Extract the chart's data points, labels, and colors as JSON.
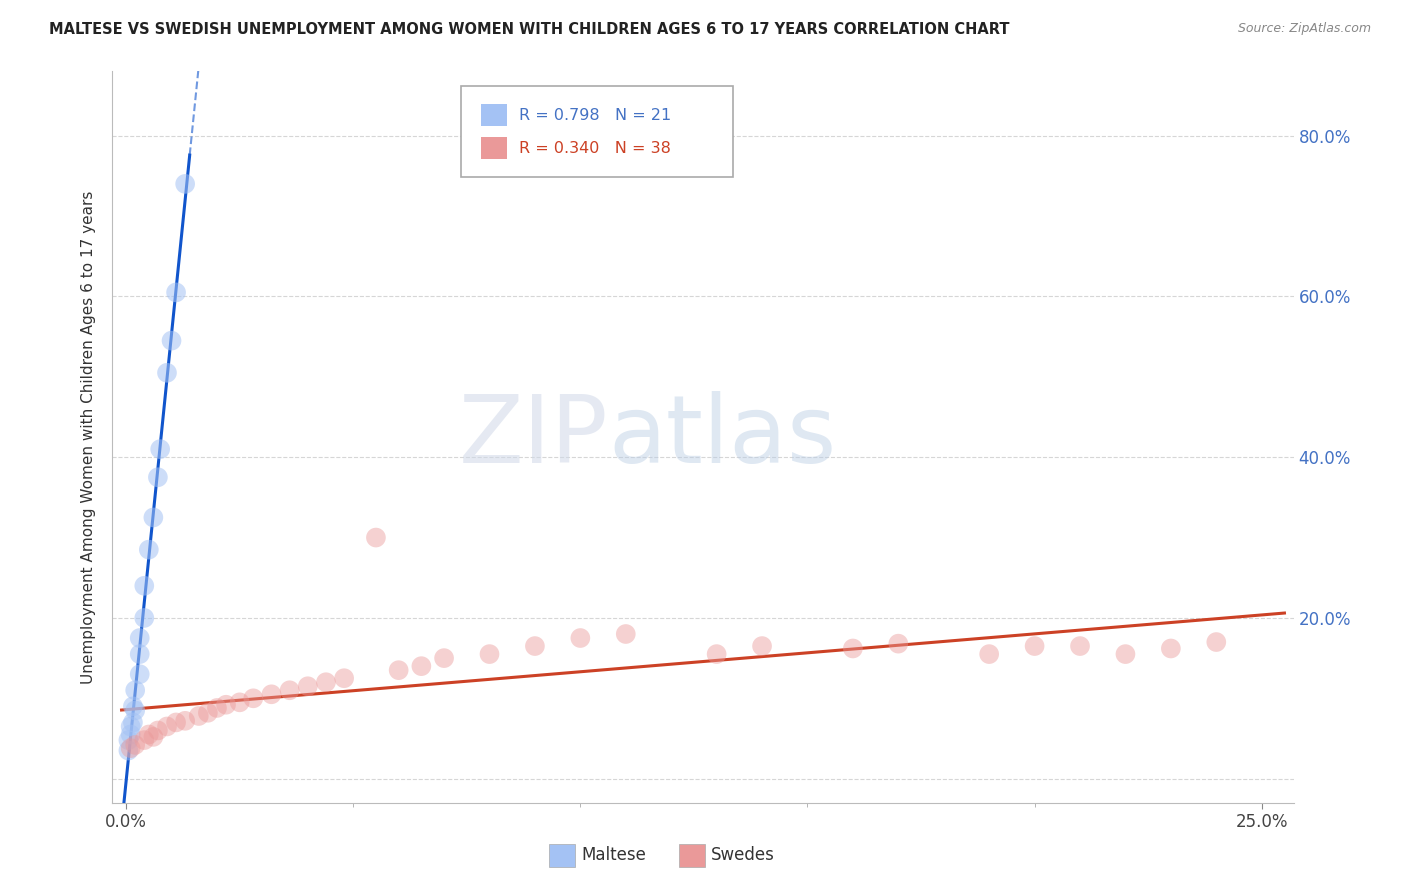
{
  "title": "MALTESE VS SWEDISH UNEMPLOYMENT AMONG WOMEN WITH CHILDREN AGES 6 TO 17 YEARS CORRELATION CHART",
  "source": "Source: ZipAtlas.com",
  "ylabel": "Unemployment Among Women with Children Ages 6 to 17 years",
  "legend_maltese": "Maltese",
  "legend_swedes": "Swedes",
  "legend_r_maltese": "R = 0.798",
  "legend_n_maltese": "N = 21",
  "legend_r_swedes": "R = 0.340",
  "legend_n_swedes": "N = 38",
  "xlim": [
    -0.003,
    0.257
  ],
  "ylim": [
    -0.03,
    0.88
  ],
  "yticks": [
    0.0,
    0.2,
    0.4,
    0.6,
    0.8
  ],
  "ytick_labels": [
    "",
    "20.0%",
    "40.0%",
    "60.0%",
    "80.0%"
  ],
  "blue_color": "#a4c2f4",
  "blue_line_color": "#1155cc",
  "pink_color": "#ea9999",
  "pink_line_color": "#cc4125",
  "grid_color": "#cccccc",
  "background_color": "#ffffff",
  "maltese_x": [
    0.0005,
    0.0005,
    0.001,
    0.001,
    0.0015,
    0.0015,
    0.002,
    0.002,
    0.003,
    0.003,
    0.003,
    0.004,
    0.004,
    0.005,
    0.006,
    0.007,
    0.0075,
    0.009,
    0.01,
    0.011,
    0.013
  ],
  "maltese_y": [
    0.035,
    0.048,
    0.055,
    0.065,
    0.07,
    0.09,
    0.085,
    0.11,
    0.13,
    0.155,
    0.175,
    0.2,
    0.24,
    0.285,
    0.325,
    0.375,
    0.41,
    0.505,
    0.545,
    0.605,
    0.74
  ],
  "swedes_x": [
    0.001,
    0.002,
    0.004,
    0.005,
    0.006,
    0.007,
    0.009,
    0.011,
    0.013,
    0.016,
    0.018,
    0.02,
    0.022,
    0.025,
    0.028,
    0.032,
    0.036,
    0.04,
    0.044,
    0.048,
    0.055,
    0.06,
    0.065,
    0.07,
    0.08,
    0.09,
    0.1,
    0.11,
    0.13,
    0.14,
    0.16,
    0.17,
    0.19,
    0.2,
    0.21,
    0.22,
    0.23,
    0.24
  ],
  "swedes_y": [
    0.038,
    0.042,
    0.048,
    0.055,
    0.052,
    0.06,
    0.065,
    0.07,
    0.072,
    0.078,
    0.082,
    0.088,
    0.092,
    0.095,
    0.1,
    0.105,
    0.11,
    0.115,
    0.12,
    0.125,
    0.3,
    0.135,
    0.14,
    0.15,
    0.155,
    0.165,
    0.175,
    0.18,
    0.155,
    0.165,
    0.162,
    0.168,
    0.155,
    0.165,
    0.165,
    0.155,
    0.162,
    0.17
  ]
}
